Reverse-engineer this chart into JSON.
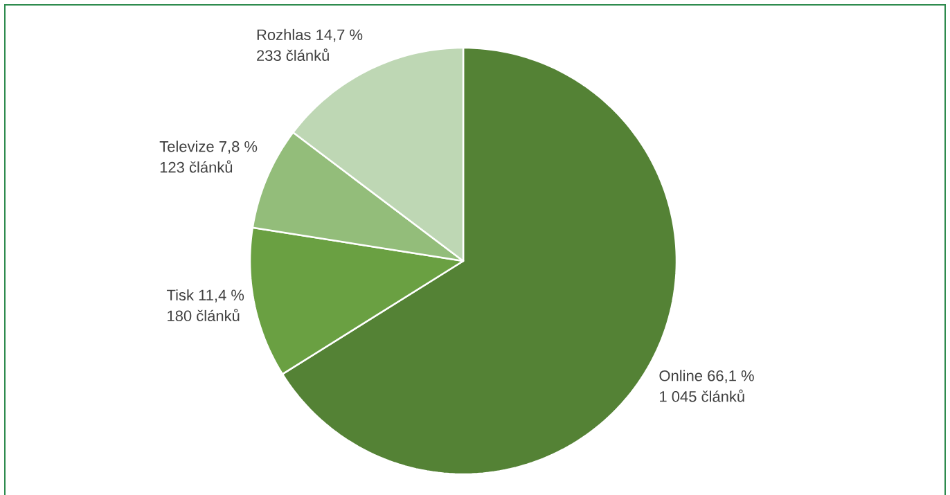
{
  "chart_data": {
    "type": "pie",
    "categories": [
      "Online",
      "Tisk",
      "Televize",
      "Rozhlas"
    ],
    "values": [
      66.1,
      11.4,
      7.8,
      14.7
    ],
    "colors": [
      "#548235",
      "#6aa042",
      "#93bd7a",
      "#bed7b4"
    ],
    "value_labels": [
      "66,1 %",
      "11,4 %",
      "7,8 %",
      "14,7 %"
    ],
    "annotations": [
      {
        "text": "1 045 článků",
        "x": "Online"
      },
      {
        "text": "180 článků",
        "x": "Tisk"
      },
      {
        "text": "123 článků",
        "x": "Televize"
      },
      {
        "text": "233 článků",
        "x": "Rozhlas"
      }
    ]
  }
}
